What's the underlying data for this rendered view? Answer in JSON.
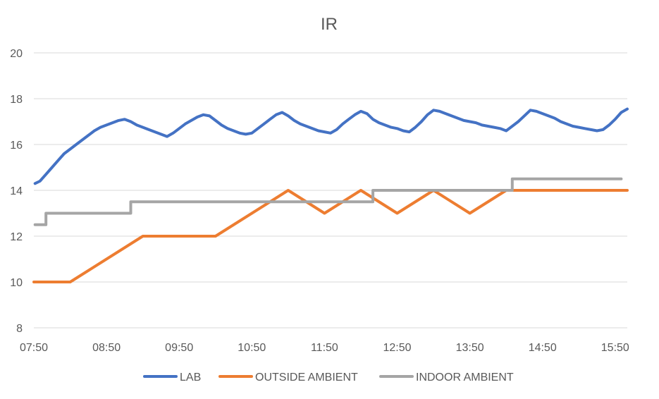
{
  "chart_data": {
    "type": "line",
    "title": "IR",
    "xlabel": "",
    "ylabel": "",
    "ylim": [
      8,
      20
    ],
    "yticks": [
      "8",
      "10",
      "12",
      "14",
      "16",
      "18",
      "20"
    ],
    "xlim": [
      "07:50",
      "16:00"
    ],
    "xticks": [
      "07:50",
      "08:50",
      "09:50",
      "10:50",
      "11:50",
      "12:50",
      "13:50",
      "14:50",
      "15:50"
    ],
    "grid": "horizontal",
    "legend_position": "bottom",
    "series": [
      {
        "name": "LAB",
        "color": "#4472C4",
        "x": [
          "07:51",
          "07:55",
          "08:00",
          "08:05",
          "08:10",
          "08:15",
          "08:20",
          "08:25",
          "08:30",
          "08:35",
          "08:40",
          "08:45",
          "08:50",
          "08:55",
          "09:00",
          "09:05",
          "09:10",
          "09:15",
          "09:20",
          "09:25",
          "09:30",
          "09:35",
          "09:40",
          "09:45",
          "09:50",
          "09:55",
          "10:00",
          "10:05",
          "10:10",
          "10:15",
          "10:20",
          "10:25",
          "10:30",
          "10:35",
          "10:40",
          "10:45",
          "10:50",
          "10:55",
          "11:00",
          "11:05",
          "11:10",
          "11:15",
          "11:20",
          "11:25",
          "11:30",
          "11:35",
          "11:40",
          "11:45",
          "11:50",
          "11:55",
          "12:00",
          "12:05",
          "12:10",
          "12:15",
          "12:20",
          "12:25",
          "12:30",
          "12:35",
          "12:40",
          "12:45",
          "12:50",
          "12:55",
          "13:00",
          "13:05",
          "13:10",
          "13:15",
          "13:20",
          "13:25",
          "13:30",
          "13:35",
          "13:40",
          "13:45",
          "13:50",
          "13:55",
          "14:00",
          "14:05",
          "14:10",
          "14:15",
          "14:20",
          "14:25",
          "14:30",
          "14:35",
          "14:40",
          "14:45",
          "14:50",
          "14:55",
          "15:00",
          "15:05",
          "15:10",
          "15:15",
          "15:20",
          "15:25",
          "15:30",
          "15:35",
          "15:40",
          "15:45",
          "15:50",
          "15:55",
          "16:00"
        ],
        "values": [
          14.3,
          14.4,
          14.7,
          15.0,
          15.3,
          15.6,
          15.8,
          16.0,
          16.2,
          16.4,
          16.6,
          16.75,
          16.85,
          16.95,
          17.05,
          17.1,
          17.0,
          16.85,
          16.75,
          16.65,
          16.55,
          16.45,
          16.35,
          16.5,
          16.7,
          16.9,
          17.05,
          17.2,
          17.3,
          17.25,
          17.05,
          16.85,
          16.7,
          16.6,
          16.5,
          16.45,
          16.5,
          16.7,
          16.9,
          17.1,
          17.3,
          17.4,
          17.25,
          17.05,
          16.9,
          16.8,
          16.7,
          16.6,
          16.55,
          16.5,
          16.65,
          16.9,
          17.1,
          17.3,
          17.45,
          17.35,
          17.1,
          16.95,
          16.85,
          16.75,
          16.7,
          16.6,
          16.55,
          16.75,
          17.0,
          17.3,
          17.5,
          17.45,
          17.35,
          17.25,
          17.15,
          17.05,
          17.0,
          16.95,
          16.85,
          16.8,
          16.75,
          16.7,
          16.6,
          16.8,
          17.0,
          17.25,
          17.5,
          17.45,
          17.35,
          17.25,
          17.15,
          17.0,
          16.9,
          16.8,
          16.75,
          16.7,
          16.65,
          16.6,
          16.65,
          16.85,
          17.1,
          17.4,
          17.55
        ]
      },
      {
        "name": "OUTSIDE AMBIENT",
        "color": "#ED7D31",
        "x": [
          "07:50",
          "08:20",
          "09:20",
          "10:20",
          "11:20",
          "11:50",
          "12:20",
          "12:50",
          "13:20",
          "13:50",
          "14:20",
          "16:00"
        ],
        "values": [
          10,
          10,
          12,
          12,
          14,
          13,
          14,
          13,
          14,
          13,
          14,
          14
        ]
      },
      {
        "name": "INDOOR AMBIENT",
        "color": "#A5A5A5",
        "step": true,
        "x": [
          "07:51",
          "08:00",
          "09:10",
          "12:30",
          "14:25",
          "15:55"
        ],
        "values": [
          12.5,
          13,
          13.5,
          14,
          14.5,
          14.5
        ]
      }
    ]
  }
}
